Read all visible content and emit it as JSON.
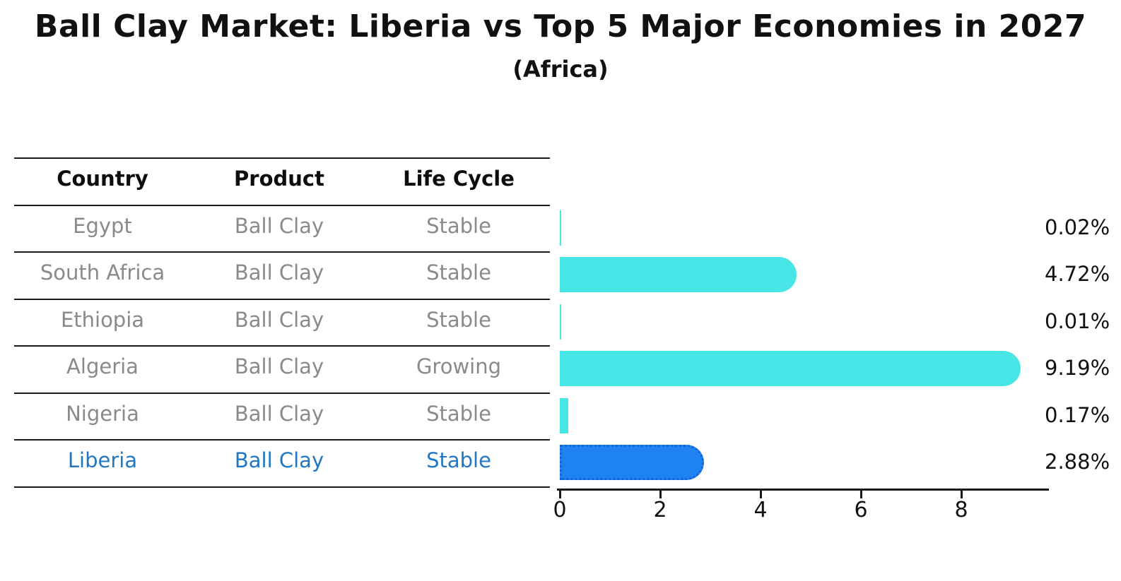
{
  "title": "Ball Clay Market: Liberia vs Top 5 Major Economies in 2027",
  "subtitle": "(Africa)",
  "table": {
    "headers": [
      "Country",
      "Product",
      "Life Cycle"
    ],
    "rows": [
      {
        "country": "Egypt",
        "product": "Ball Clay",
        "life_cycle": "Stable",
        "highlight": false
      },
      {
        "country": "South Africa",
        "product": "Ball Clay",
        "life_cycle": "Stable",
        "highlight": false
      },
      {
        "country": "Ethiopia",
        "product": "Ball Clay",
        "life_cycle": "Stable",
        "highlight": false
      },
      {
        "country": "Algeria",
        "product": "Ball Clay",
        "life_cycle": "Growing",
        "highlight": false
      },
      {
        "country": "Nigeria",
        "product": "Ball Clay",
        "life_cycle": "Stable",
        "highlight": false
      },
      {
        "country": "Liberia",
        "product": "Ball Clay",
        "life_cycle": "Stable",
        "highlight": true
      }
    ]
  },
  "chart_data": {
    "type": "bar",
    "orientation": "horizontal",
    "categories": [
      "Egypt",
      "South Africa",
      "Ethiopia",
      "Algeria",
      "Nigeria",
      "Liberia"
    ],
    "values": [
      0.02,
      4.72,
      0.01,
      9.19,
      0.17,
      2.88
    ],
    "value_labels": [
      "0.02%",
      "4.72%",
      "0.01%",
      "9.19%",
      "0.17%",
      "2.88%"
    ],
    "highlight_index": 5,
    "xticks": [
      "0",
      "2",
      "4",
      "6",
      "8"
    ],
    "xtick_values": [
      0,
      2,
      4,
      6,
      8
    ],
    "xlim": [
      0,
      9.8
    ],
    "grid": false,
    "legend": "none",
    "bar_color_default": "#47e5e6",
    "bar_color_highlight": "#1e82f0",
    "highlight_text_color": "#2277c3"
  }
}
